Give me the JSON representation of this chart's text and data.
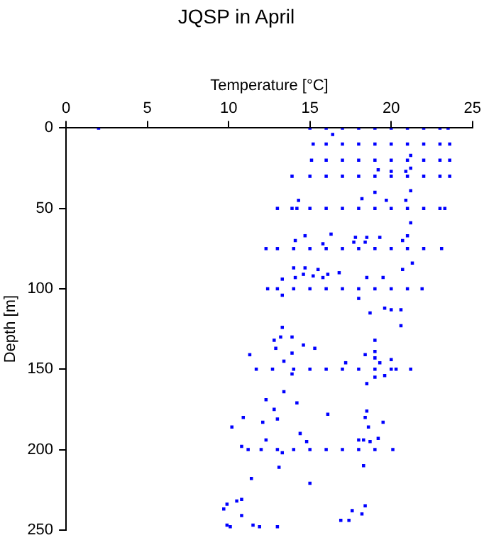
{
  "chart_data": {
    "type": "scatter",
    "title": "JQSP in April",
    "xlabel": "Temperature [°C]",
    "ylabel": "Depth [m]",
    "xlim": [
      0,
      25
    ],
    "xticks": [
      0,
      5,
      10,
      15,
      20,
      25
    ],
    "ylim": [
      250,
      0
    ],
    "yticks": [
      0,
      50,
      100,
      150,
      200,
      250
    ],
    "grid": false,
    "legend": false,
    "marker": "square",
    "series": [
      {
        "color": "#0000ff",
        "x": [
          2,
          15,
          16,
          17,
          18,
          19,
          20,
          21,
          22,
          23,
          23.5
        ],
        "values": [
          0,
          0,
          0,
          0,
          0,
          0,
          0,
          0,
          0,
          0,
          0
        ]
      },
      {
        "color": "#0000ff",
        "x": [
          15.2,
          16,
          17,
          18,
          19,
          20,
          21,
          22,
          23,
          23.6
        ],
        "values": [
          10,
          10,
          10,
          10,
          10,
          10,
          10,
          10,
          10,
          10
        ]
      },
      {
        "color": "#0000ff",
        "x": [
          15.1,
          16,
          17,
          18,
          19,
          20,
          21,
          22,
          23,
          23.6
        ],
        "values": [
          20,
          20,
          20,
          20,
          20,
          20,
          20,
          20,
          20,
          20
        ]
      },
      {
        "color": "#0000ff",
        "x": [
          13.9,
          15,
          16,
          17,
          18,
          19,
          20,
          21,
          22,
          23,
          23.6
        ],
        "values": [
          30,
          30,
          30,
          30,
          30,
          30,
          30,
          30,
          30,
          30,
          30
        ]
      },
      {
        "color": "#0000ff",
        "x": [
          13,
          13.9,
          14.2,
          15,
          16,
          17,
          18,
          19,
          20,
          21,
          22,
          23,
          23.3
        ],
        "values": [
          50,
          50,
          50,
          50,
          50,
          50,
          50,
          50,
          50,
          50,
          50,
          50,
          50
        ]
      },
      {
        "color": "#0000ff",
        "x": [
          12.3,
          13,
          14,
          15,
          16,
          17,
          18,
          19,
          20,
          21,
          22,
          23.1
        ],
        "values": [
          75,
          75,
          75,
          75,
          75,
          75,
          75,
          75,
          75,
          75,
          75,
          75
        ]
      },
      {
        "color": "#0000ff",
        "x": [
          12.4,
          13,
          14,
          15,
          16,
          17,
          18,
          19,
          20,
          21,
          21.9
        ],
        "values": [
          100,
          100,
          100,
          100,
          100,
          100,
          100,
          100,
          100,
          100,
          100
        ]
      },
      {
        "color": "#0000ff",
        "x": [
          11.7,
          12.7,
          14,
          15,
          16,
          17,
          18,
          19,
          20,
          20.3,
          21.2
        ],
        "values": [
          150,
          150,
          150,
          150,
          150,
          150,
          150,
          150,
          150,
          150,
          150
        ]
      },
      {
        "color": "#0000ff",
        "x": [
          11.2,
          12,
          13,
          14,
          15,
          16,
          17,
          18,
          19,
          20.1
        ],
        "values": [
          200,
          200,
          200,
          200,
          200,
          200,
          200,
          200,
          200,
          200
        ]
      },
      {
        "color": "#0000ff",
        "x": [
          16.4,
          21.2,
          21.2,
          19.2,
          20.0,
          20.9,
          19.0,
          21.2,
          18.2,
          19.7,
          20.9,
          14.3,
          21.2,
          16.3,
          14.7,
          17.8,
          18.5,
          19.3,
          21.0,
          14.1,
          15.8,
          17.7,
          18.4,
          20.7,
          21.3,
          20.7,
          14.0,
          14.7,
          15.5,
          14.6,
          15.2,
          16.1,
          16.8,
          13.3,
          14.1,
          15.8,
          18.5,
          19.5,
          13.3,
          18.0,
          18.7,
          19.6,
          20.0,
          20.6,
          20.6,
          13.3,
          12.8,
          13.2,
          13.9,
          19.0,
          14.6,
          15.3,
          12.9,
          11.3,
          13.9,
          19.0,
          18.4,
          13.4,
          19.0,
          20.0,
          19.3,
          17.2,
          13.9,
          19.0,
          19.6,
          18.5,
          13.4,
          12.3,
          14.2,
          12.8,
          18.5,
          16.1,
          10.9,
          13.0,
          18.4,
          19.5,
          12.1,
          10.2,
          18.6,
          14.4,
          12.3,
          14.8,
          18.0,
          18.3,
          18.7,
          19.2,
          10.8,
          13.3,
          13.1,
          18.3,
          11.4,
          15.0,
          10.8,
          10.5,
          9.9,
          9.7,
          17.6,
          18.4,
          10.8,
          18.2,
          16.9,
          17.4,
          9.9,
          10.1,
          11.5,
          11.9,
          13.0
        ],
        "values": [
          4,
          17,
          25,
          26,
          27,
          27,
          40,
          39,
          44,
          45,
          45,
          45,
          59,
          66,
          67,
          68,
          68,
          68,
          67,
          70,
          72,
          71,
          71,
          70,
          84,
          88,
          87,
          87,
          88,
          91,
          92,
          91,
          90,
          94,
          93,
          93,
          93,
          93,
          104,
          106,
          115,
          112,
          113,
          113,
          123,
          124,
          132,
          130,
          130,
          132,
          135,
          137,
          137,
          141,
          140,
          139,
          141,
          145,
          143,
          144,
          146,
          146,
          153,
          155,
          154,
          159,
          164,
          169,
          171,
          175,
          176,
          178,
          180,
          181,
          180,
          183,
          183,
          186,
          186,
          190,
          194,
          195,
          194,
          194,
          195,
          193,
          198,
          202,
          211,
          210,
          218,
          221,
          231,
          232,
          234,
          237,
          238,
          235,
          241,
          240,
          244,
          244,
          247,
          248,
          247,
          248,
          248
        ]
      }
    ]
  }
}
